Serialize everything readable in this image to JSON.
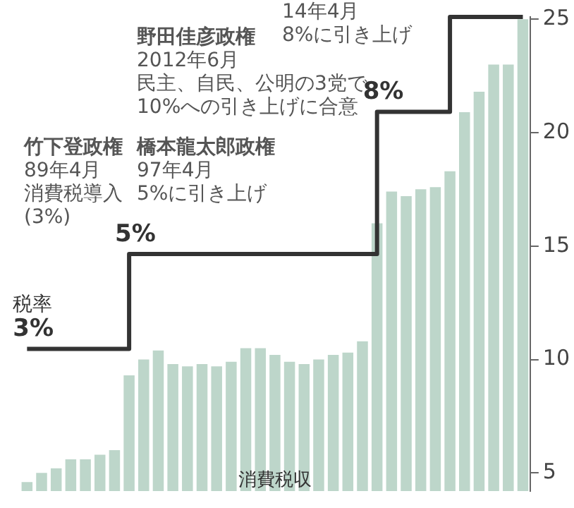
{
  "chart_data": {
    "type": "bar",
    "categories": [
      null,
      null,
      null,
      null,
      null,
      null,
      null,
      null,
      null,
      null,
      null,
      null,
      null,
      null,
      null,
      null,
      null,
      null,
      null,
      null,
      null,
      null,
      null,
      null,
      null,
      null,
      null,
      null,
      null,
      null,
      null,
      null,
      null,
      null,
      null
    ],
    "series": [
      {
        "name": "消費税収",
        "color": "#bdd6ca",
        "values": [
          4.6,
          5.0,
          5.2,
          5.6,
          5.6,
          5.8,
          6.0,
          9.3,
          10.0,
          10.4,
          9.8,
          9.7,
          9.8,
          9.7,
          9.9,
          10.5,
          10.5,
          10.2,
          9.9,
          9.8,
          10.0,
          10.2,
          10.3,
          10.8,
          16.0,
          17.4,
          17.2,
          17.5,
          17.6,
          18.3,
          20.9,
          21.8,
          23.0,
          23.0,
          25.0
        ]
      },
      {
        "name": "税率",
        "type": "step",
        "axis": "y2",
        "color": "#333333",
        "values": [
          3,
          3,
          3,
          3,
          3,
          3,
          3,
          5,
          5,
          5,
          5,
          5,
          5,
          5,
          5,
          5,
          5,
          5,
          5,
          5,
          5,
          5,
          5,
          5,
          8,
          8,
          8,
          8,
          8,
          10,
          10,
          10,
          10,
          10,
          10
        ],
        "value_labels": [
          "3%",
          null,
          null,
          null,
          null,
          null,
          null,
          "5%",
          null,
          null,
          null,
          null,
          null,
          null,
          null,
          null,
          null,
          null,
          null,
          null,
          null,
          null,
          null,
          null,
          "8%",
          null,
          null,
          null,
          null,
          null,
          null,
          null,
          null,
          null,
          null
        ]
      }
    ],
    "ylim": [
      4.2,
      25.1
    ],
    "yticks": [
      5,
      10,
      15,
      20,
      25
    ],
    "tick_labels": "y",
    "annotations": [
      "竹下登政権",
      "89年4月",
      "消費税導入(3%)",
      "橋本龍太郎政権",
      "97年4月",
      "5%に引き上げ",
      "野田佳彦政権",
      "2012年6月",
      "民主、自民、公明の3党で10%への引き上げに合意",
      "14年4月",
      "8%に引き上げ"
    ]
  }
}
